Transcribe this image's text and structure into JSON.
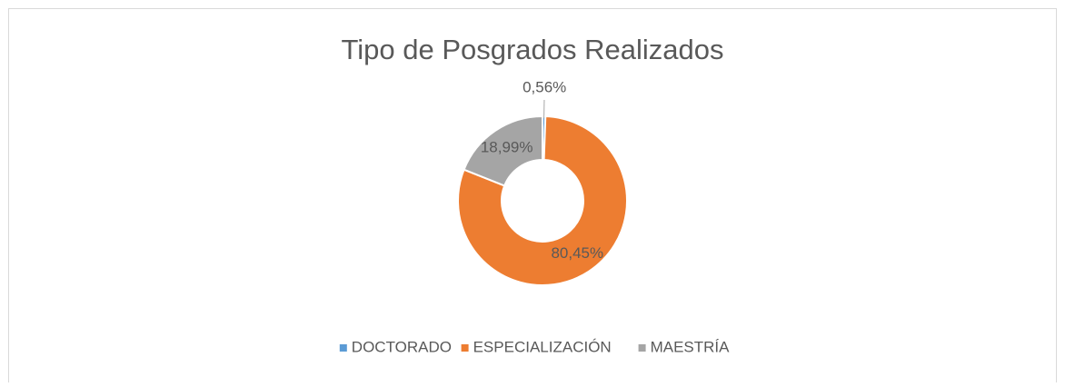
{
  "chart_data": {
    "type": "donut",
    "title": "Tipo de Posgrados Realizados",
    "categories": [
      "DOCTORADO",
      "ESPECIALIZACIÓN",
      "MAESTRÍA"
    ],
    "values": [
      0.56,
      80.45,
      18.99
    ],
    "value_labels": [
      "0,56%",
      "80,45%",
      "18,99%"
    ],
    "colors": [
      "#5b9bd5",
      "#ed7d31",
      "#a5a5a5"
    ],
    "legend": "bottom"
  }
}
